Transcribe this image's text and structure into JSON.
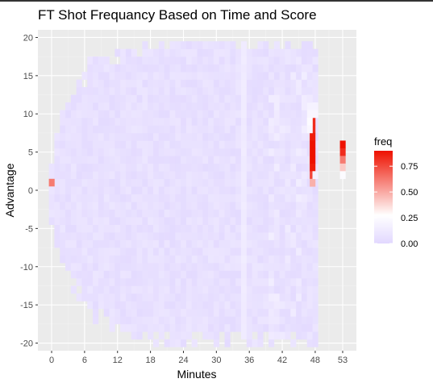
{
  "chart_data": {
    "type": "heatmap",
    "title": "FT Shot Frequancy Based on Time and Score",
    "xlabel": "Minutes",
    "ylabel": "Advantage",
    "x_ticks": [
      0,
      6,
      12,
      18,
      24,
      30,
      36,
      42,
      48,
      53
    ],
    "y_ticks": [
      20,
      15,
      10,
      5,
      0,
      -5,
      -10,
      -15,
      -20
    ],
    "xlim": [
      -2.5,
      55.5
    ],
    "ylim": [
      -21,
      21
    ],
    "grid": true,
    "legend": {
      "title": "freq",
      "labels": [
        "0.75",
        "0.50",
        "0.25",
        "0.00"
      ],
      "values": [
        0.75,
        0.5,
        0.25,
        0.0
      ],
      "range": [
        0,
        0.9
      ],
      "position": "right"
    },
    "colors": {
      "low": "#e2d8ff",
      "mid": "#ffffff",
      "high": "#ee1100",
      "panel": "#ebebeb",
      "grid_major": "#ffffff",
      "grid_minor": "#f2f2f2"
    },
    "highlight_cells": [
      {
        "x": 0,
        "y": 1,
        "freq": 0.7
      },
      {
        "x": 0,
        "y": 0,
        "freq": 0.15
      },
      {
        "x": 47.5,
        "y": 11,
        "freq": 0.45
      },
      {
        "x": 47.5,
        "y": 10,
        "freq": 0.55
      },
      {
        "x": 47.5,
        "y": 9,
        "freq": 0.85
      },
      {
        "x": 47.5,
        "y": 8,
        "freq": 0.85
      },
      {
        "x": 47.5,
        "y": 7,
        "freq": 0.88
      },
      {
        "x": 47.5,
        "y": 6,
        "freq": 0.9
      },
      {
        "x": 47.5,
        "y": 5,
        "freq": 0.9
      },
      {
        "x": 47.5,
        "y": 4,
        "freq": 0.9
      },
      {
        "x": 47.5,
        "y": 3,
        "freq": 0.88
      },
      {
        "x": 47.5,
        "y": 2,
        "freq": 0.8
      },
      {
        "x": 47.5,
        "y": 1,
        "freq": 0.6
      },
      {
        "x": 47,
        "y": 11,
        "freq": 0.3
      },
      {
        "x": 47,
        "y": 10,
        "freq": 0.35
      },
      {
        "x": 47,
        "y": 9,
        "freq": 0.4
      },
      {
        "x": 47,
        "y": 8,
        "freq": 0.35
      },
      {
        "x": 47,
        "y": 12,
        "freq": 0.2
      },
      {
        "x": 48,
        "y": 11,
        "freq": 0.3
      },
      {
        "x": 48,
        "y": 10,
        "freq": 0.35
      },
      {
        "x": 48,
        "y": 2,
        "freq": 0.3
      },
      {
        "x": 53,
        "y": 6,
        "freq": 0.9
      },
      {
        "x": 53,
        "y": 5,
        "freq": 0.85
      },
      {
        "x": 53,
        "y": 4,
        "freq": 0.7
      },
      {
        "x": 53,
        "y": 3,
        "freq": 0.55
      },
      {
        "x": 53,
        "y": 2,
        "freq": 0.4
      }
    ]
  }
}
